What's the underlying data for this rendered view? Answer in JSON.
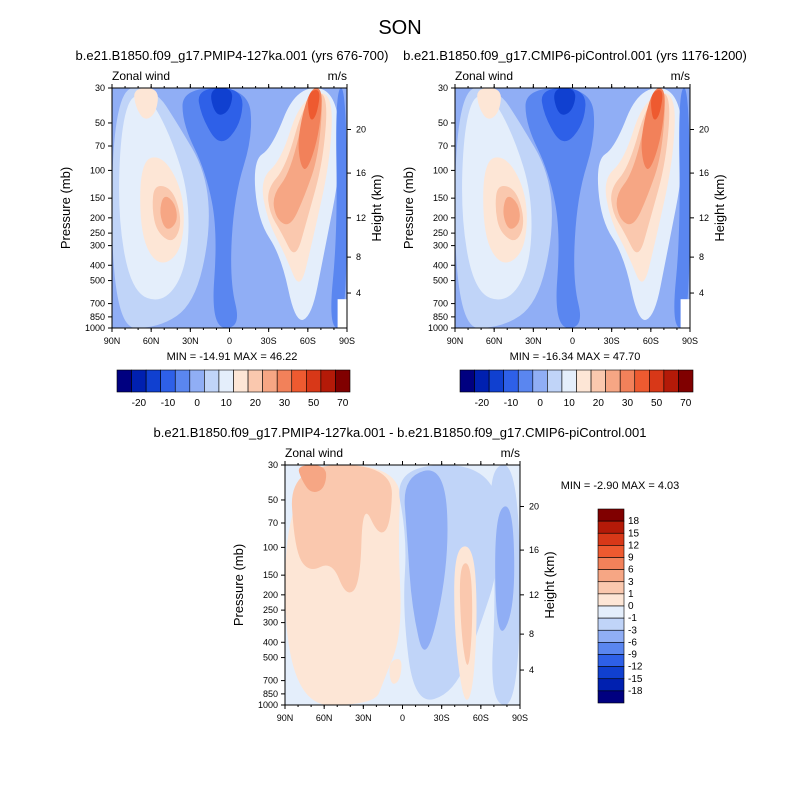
{
  "figure_title": "SON",
  "chart_data": [
    {
      "type": "contour",
      "title": "b.e21.B1850.f09_g17.PMIP4-127ka.001 (yrs 676-700)",
      "left_label": "Zonal wind",
      "right_label": "m/s",
      "xlabel": "",
      "ylabel": "Pressure (mb)",
      "ylabel_right": "Height (km)",
      "x_ticks": [
        "90N",
        "60N",
        "30N",
        "0",
        "30S",
        "60S",
        "90S"
      ],
      "y_ticks": [
        "30",
        "50",
        "70",
        "100",
        "150",
        "200",
        "250",
        "300",
        "400",
        "500",
        "700",
        "850",
        "1000"
      ],
      "y_ticks_right": [
        "4",
        "8",
        "12",
        "16",
        "20"
      ],
      "min_max": "MIN = -14.91  MAX =  46.22",
      "colorbar_labels": [
        "-20",
        "-10",
        "0",
        "10",
        "20",
        "30",
        "50",
        "70"
      ]
    },
    {
      "type": "contour",
      "title": "b.e21.B1850.f09_g17.CMIP6-piControl.001 (yrs 1176-1200)",
      "left_label": "Zonal wind",
      "right_label": "m/s",
      "xlabel": "",
      "ylabel": "Pressure (mb)",
      "ylabel_right": "Height (km)",
      "x_ticks": [
        "90N",
        "60N",
        "30N",
        "0",
        "30S",
        "60S",
        "90S"
      ],
      "y_ticks": [
        "30",
        "50",
        "70",
        "100",
        "150",
        "200",
        "250",
        "300",
        "400",
        "500",
        "700",
        "850",
        "1000"
      ],
      "y_ticks_right": [
        "4",
        "8",
        "12",
        "16",
        "20"
      ],
      "min_max": "MIN = -16.34  MAX =  47.70",
      "colorbar_labels": [
        "-20",
        "-10",
        "0",
        "10",
        "20",
        "30",
        "50",
        "70"
      ]
    },
    {
      "type": "contour",
      "title": "b.e21.B1850.f09_g17.PMIP4-127ka.001 - b.e21.B1850.f09_g17.CMIP6-piControl.001",
      "left_label": "Zonal wind",
      "right_label": "m/s",
      "xlabel": "",
      "ylabel": "Pressure (mb)",
      "ylabel_right": "Height (km)",
      "x_ticks": [
        "90N",
        "60N",
        "30N",
        "0",
        "30S",
        "60S",
        "90S"
      ],
      "y_ticks": [
        "30",
        "50",
        "70",
        "100",
        "150",
        "200",
        "250",
        "300",
        "400",
        "500",
        "700",
        "850",
        "1000"
      ],
      "y_ticks_right": [
        "4",
        "8",
        "12",
        "16",
        "20"
      ],
      "min_max": "MIN =  -2.90  MAX =   4.03",
      "colorbar_labels": [
        "18",
        "15",
        "12",
        "9",
        "6",
        "3",
        "1",
        "0",
        "-1",
        "-3",
        "-6",
        "-9",
        "-12",
        "-15",
        "-18"
      ]
    }
  ],
  "colors": {
    "full_scale": [
      "#000080",
      "#0020B0",
      "#1040D0",
      "#2E60E8",
      "#5A86F0",
      "#90AEF5",
      "#C0D4F8",
      "#E4EEFB",
      "#FDE6D6",
      "#FAC8AE",
      "#F6A684",
      "#F2815A",
      "#EE5A30",
      "#D83818",
      "#B41A08",
      "#800000"
    ],
    "diff_scale": [
      "#800000",
      "#B41A08",
      "#D83818",
      "#EE5A30",
      "#F2815A",
      "#F6A684",
      "#FAC8AE",
      "#FDE6D6",
      "#E4EEFB",
      "#C0D4F8",
      "#90AEF5",
      "#5A86F0",
      "#2E60E8",
      "#1040D0",
      "#0020B0",
      "#000080"
    ]
  }
}
